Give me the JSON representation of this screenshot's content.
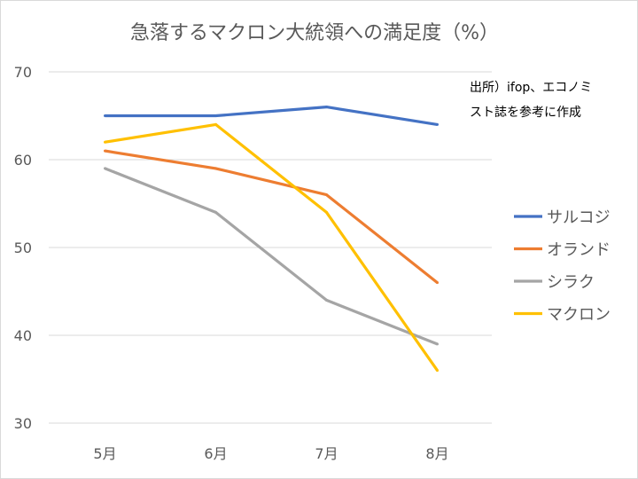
{
  "chart_data": {
    "type": "line",
    "title": "急落するマクロン大統領への満足度（%）",
    "note_lines": [
      "出所）ifop、エコノミ",
      "スト誌を参考に作成"
    ],
    "categories": [
      "5月",
      "6月",
      "7月",
      "8月"
    ],
    "ylim": [
      30,
      70
    ],
    "yticks": [
      30,
      40,
      50,
      60,
      70
    ],
    "grid": true,
    "legend_position": "right",
    "series": [
      {
        "name": "サルコジ",
        "color": "#4472c4",
        "values": [
          65,
          65,
          66,
          64
        ]
      },
      {
        "name": "オランド",
        "color": "#ed7d31",
        "values": [
          61,
          59,
          56,
          46
        ]
      },
      {
        "name": "シラク",
        "color": "#a5a5a5",
        "values": [
          59,
          54,
          44,
          39
        ]
      },
      {
        "name": "マクロン",
        "color": "#ffc000",
        "values": [
          62,
          64,
          54,
          36
        ]
      }
    ]
  }
}
